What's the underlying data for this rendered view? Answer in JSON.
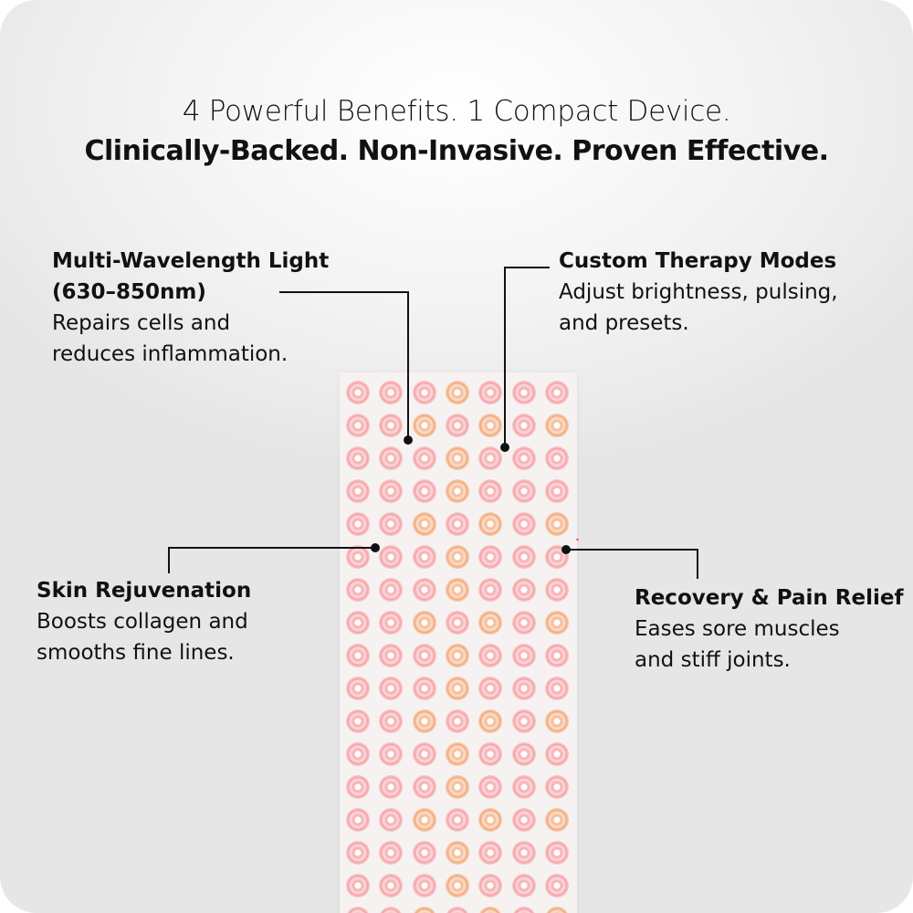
{
  "headline": {
    "line1": "4 Powerful Benefits. 1 Compact Device.",
    "line2": "Clinically-Backed. Non-Invasive. Proven Effective."
  },
  "callouts": [
    {
      "title": "Multi-Wavelength Light",
      "title2": "(630–850nm)",
      "desc1": "Repairs cells and",
      "desc2": "reduces inflammation."
    },
    {
      "title": "Custom Therapy Modes",
      "desc1": "Adjust brightness, pulsing,",
      "desc2": "and presets."
    },
    {
      "title": "Skin Rejuvenation",
      "desc1": "Boosts collagen and",
      "desc2": "smooths fine lines."
    },
    {
      "title": "Recovery & Pain Relief",
      "desc1": "Eases sore muscles",
      "desc2": "and stiff joints."
    }
  ],
  "device": {
    "led_columns": 7,
    "led_rows": 17,
    "colors": {
      "red": "#f7b5b8",
      "nir": "#f6c09c"
    }
  },
  "colors": {
    "text": "#111111",
    "background": "#eeeeee"
  }
}
